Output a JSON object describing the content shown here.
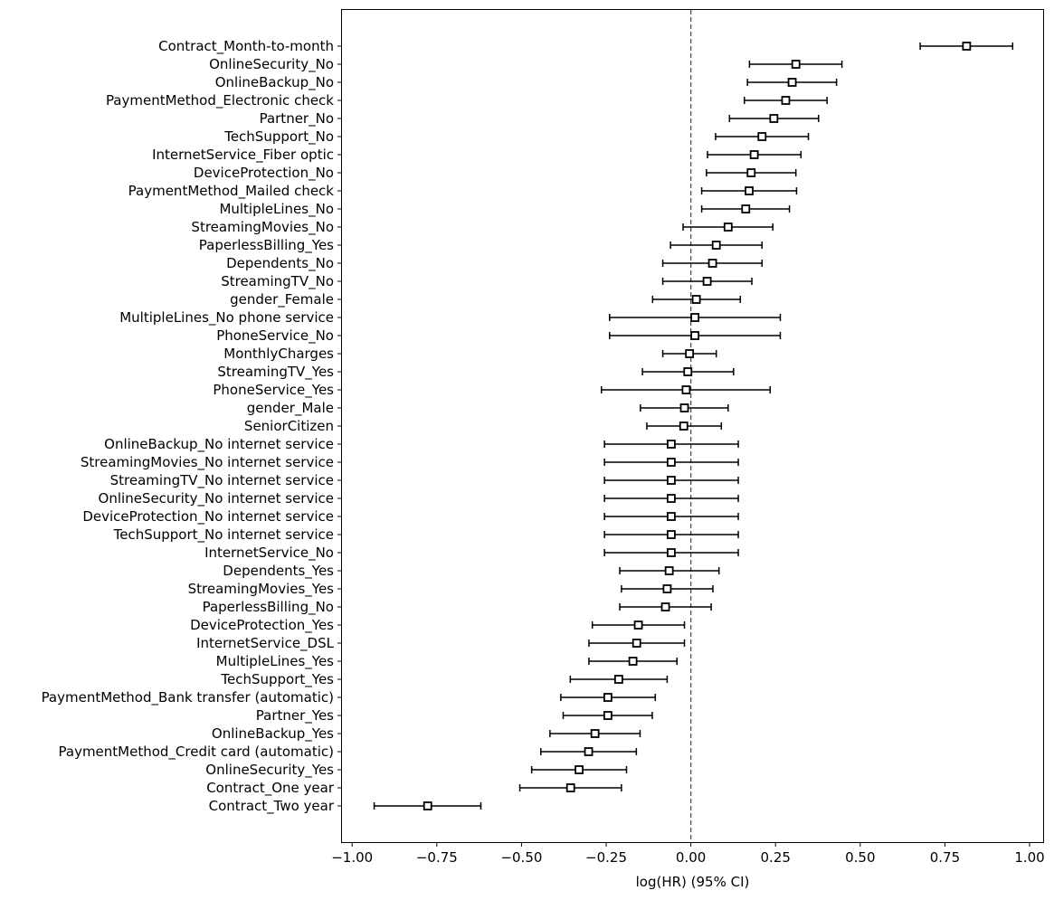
{
  "chart_data": {
    "type": "forest",
    "xlabel": "log(HR) (95% CI)",
    "xlim": [
      -1.03,
      1.04
    ],
    "xticks": [
      -1.0,
      -0.75,
      -0.5,
      -0.25,
      0.0,
      0.25,
      0.5,
      0.75,
      1.0
    ],
    "xtick_labels": [
      "−1.00",
      "−0.75",
      "−0.50",
      "−0.25",
      "0.00",
      "0.25",
      "0.50",
      "0.75",
      "1.00"
    ],
    "reference_line": 0.0,
    "grid": false,
    "rows": [
      {
        "label": "Contract_Month-to-month",
        "coef": 0.814,
        "lower": 0.677,
        "upper": 0.95
      },
      {
        "label": "OnlineSecurity_No",
        "coef": 0.31,
        "lower": 0.173,
        "upper": 0.446
      },
      {
        "label": "OnlineBackup_No",
        "coef": 0.299,
        "lower": 0.167,
        "upper": 0.43
      },
      {
        "label": "PaymentMethod_Electronic check",
        "coef": 0.28,
        "lower": 0.158,
        "upper": 0.402
      },
      {
        "label": "Partner_No",
        "coef": 0.245,
        "lower": 0.114,
        "upper": 0.377
      },
      {
        "label": "TechSupport_No",
        "coef": 0.21,
        "lower": 0.073,
        "upper": 0.347
      },
      {
        "label": "InternetService_Fiber optic",
        "coef": 0.187,
        "lower": 0.049,
        "upper": 0.325
      },
      {
        "label": "DeviceProtection_No",
        "coef": 0.178,
        "lower": 0.046,
        "upper": 0.31
      },
      {
        "label": "PaymentMethod_Mailed check",
        "coef": 0.172,
        "lower": 0.032,
        "upper": 0.312
      },
      {
        "label": "MultipleLines_No",
        "coef": 0.162,
        "lower": 0.032,
        "upper": 0.291
      },
      {
        "label": "StreamingMovies_No",
        "coef": 0.11,
        "lower": -0.023,
        "upper": 0.242
      },
      {
        "label": "PaperlessBilling_Yes",
        "coef": 0.075,
        "lower": -0.06,
        "upper": 0.21
      },
      {
        "label": "Dependents_No",
        "coef": 0.064,
        "lower": -0.083,
        "upper": 0.21
      },
      {
        "label": "StreamingTV_No",
        "coef": 0.048,
        "lower": -0.083,
        "upper": 0.18
      },
      {
        "label": "gender_Female",
        "coef": 0.016,
        "lower": -0.113,
        "upper": 0.146
      },
      {
        "label": "MultipleLines_No phone service",
        "coef": 0.012,
        "lower": -0.24,
        "upper": 0.264
      },
      {
        "label": "PhoneService_No",
        "coef": 0.012,
        "lower": -0.24,
        "upper": 0.264
      },
      {
        "label": "MonthlyCharges",
        "coef": -0.004,
        "lower": -0.083,
        "upper": 0.075
      },
      {
        "label": "StreamingTV_Yes",
        "coef": -0.009,
        "lower": -0.143,
        "upper": 0.126
      },
      {
        "label": "PhoneService_Yes",
        "coef": -0.014,
        "lower": -0.264,
        "upper": 0.234
      },
      {
        "label": "gender_Male",
        "coef": -0.019,
        "lower": -0.149,
        "upper": 0.11
      },
      {
        "label": "SeniorCitizen",
        "coef": -0.021,
        "lower": -0.13,
        "upper": 0.09
      },
      {
        "label": "OnlineBackup_No internet service",
        "coef": -0.058,
        "lower": -0.255,
        "upper": 0.14
      },
      {
        "label": "StreamingMovies_No internet service",
        "coef": -0.058,
        "lower": -0.255,
        "upper": 0.14
      },
      {
        "label": "StreamingTV_No internet service",
        "coef": -0.058,
        "lower": -0.255,
        "upper": 0.14
      },
      {
        "label": "OnlineSecurity_No internet service",
        "coef": -0.058,
        "lower": -0.255,
        "upper": 0.14
      },
      {
        "label": "DeviceProtection_No internet service",
        "coef": -0.058,
        "lower": -0.255,
        "upper": 0.14
      },
      {
        "label": "TechSupport_No internet service",
        "coef": -0.058,
        "lower": -0.255,
        "upper": 0.14
      },
      {
        "label": "InternetService_No",
        "coef": -0.058,
        "lower": -0.255,
        "upper": 0.14
      },
      {
        "label": "Dependents_Yes",
        "coef": -0.064,
        "lower": -0.21,
        "upper": 0.083
      },
      {
        "label": "StreamingMovies_Yes",
        "coef": -0.07,
        "lower": -0.205,
        "upper": 0.065
      },
      {
        "label": "PaperlessBilling_No",
        "coef": -0.075,
        "lower": -0.21,
        "upper": 0.06
      },
      {
        "label": "DeviceProtection_Yes",
        "coef": -0.155,
        "lower": -0.291,
        "upper": -0.019
      },
      {
        "label": "InternetService_DSL",
        "coef": -0.16,
        "lower": -0.301,
        "upper": -0.019
      },
      {
        "label": "MultipleLines_Yes",
        "coef": -0.171,
        "lower": -0.301,
        "upper": -0.041
      },
      {
        "label": "TechSupport_Yes",
        "coef": -0.213,
        "lower": -0.356,
        "upper": -0.07
      },
      {
        "label": "PaymentMethod_Bank transfer (automatic)",
        "coef": -0.245,
        "lower": -0.384,
        "upper": -0.105
      },
      {
        "label": "Partner_Yes",
        "coef": -0.245,
        "lower": -0.377,
        "upper": -0.114
      },
      {
        "label": "OnlineBackup_Yes",
        "coef": -0.283,
        "lower": -0.416,
        "upper": -0.15
      },
      {
        "label": "PaymentMethod_Credit card (automatic)",
        "coef": -0.302,
        "lower": -0.443,
        "upper": -0.161
      },
      {
        "label": "OnlineSecurity_Yes",
        "coef": -0.33,
        "lower": -0.47,
        "upper": -0.19
      },
      {
        "label": "Contract_One year",
        "coef": -0.355,
        "lower": -0.505,
        "upper": -0.205
      },
      {
        "label": "Contract_Two year",
        "coef": -0.777,
        "lower": -0.935,
        "upper": -0.62
      }
    ]
  }
}
